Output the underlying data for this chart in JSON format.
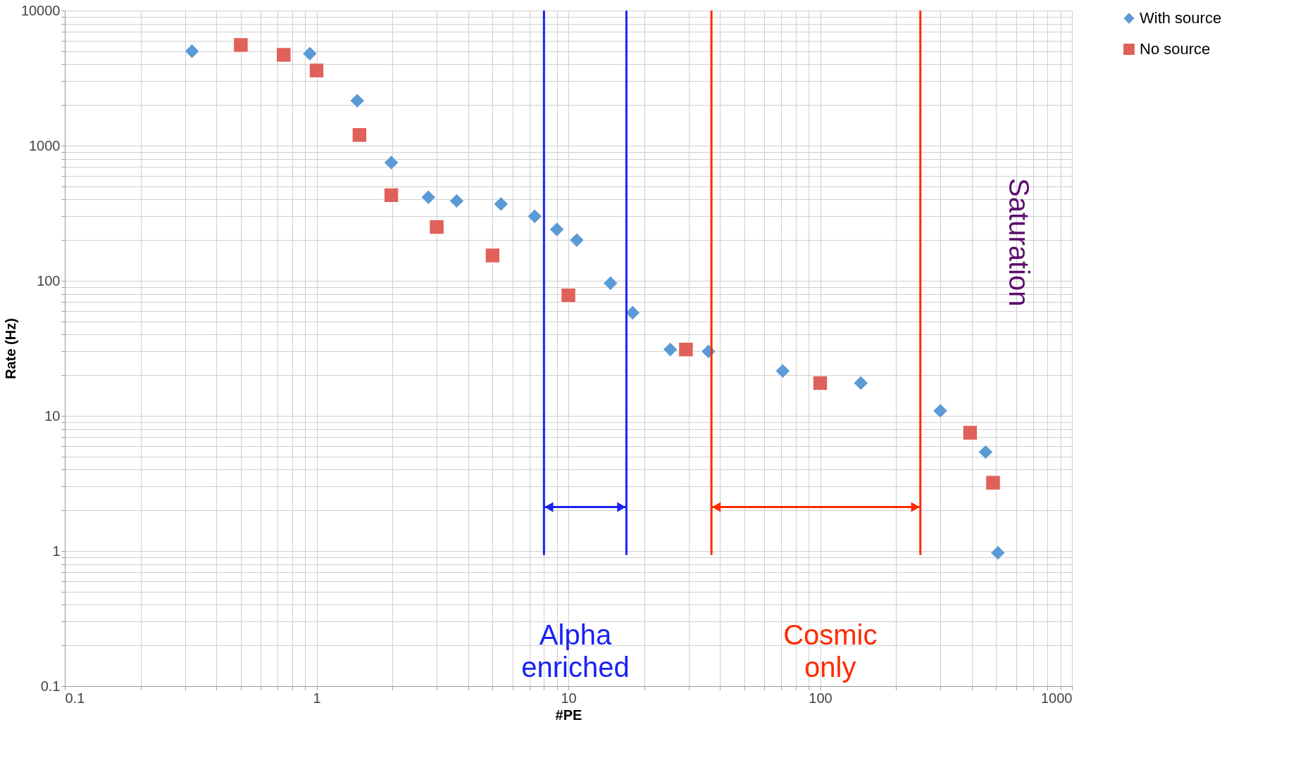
{
  "chart_data": {
    "type": "scatter",
    "xlabel": "#PE",
    "ylabel": "Rate (Hz)",
    "log": "xy",
    "grid": true,
    "legend": "right",
    "xlim": [
      0.1,
      1000
    ],
    "ylim": [
      0.1,
      10000
    ],
    "xticks": [
      0.1,
      {
        "value": 0.2,
        "label": null
      },
      {
        "value": 0.3,
        "label": null
      },
      {
        "value": 0.4,
        "label": null
      },
      {
        "value": 0.5,
        "label": null
      },
      {
        "value": 0.6,
        "label": null
      },
      {
        "value": 0.7,
        "label": null
      },
      {
        "value": 0.8,
        "label": null
      },
      {
        "value": 0.9,
        "label": null
      },
      1,
      {
        "value": 2,
        "label": null
      },
      {
        "value": 3,
        "label": null
      },
      {
        "value": 4,
        "label": null
      },
      {
        "value": 5,
        "label": null
      },
      {
        "value": 6,
        "label": null
      },
      {
        "value": 7,
        "label": null
      },
      {
        "value": 8,
        "label": null
      },
      {
        "value": 9,
        "label": null
      },
      10,
      {
        "value": 20,
        "label": null
      },
      {
        "value": 30,
        "label": null
      },
      {
        "value": 40,
        "label": null
      },
      {
        "value": 50,
        "label": null
      },
      {
        "value": 60,
        "label": null
      },
      {
        "value": 70,
        "label": null
      },
      {
        "value": 80,
        "label": null
      },
      {
        "value": 90,
        "label": null
      },
      100,
      {
        "value": 200,
        "label": null
      },
      {
        "value": 300,
        "label": null
      },
      {
        "value": 400,
        "label": null
      },
      {
        "value": 500,
        "label": null
      },
      {
        "value": 600,
        "label": null
      },
      {
        "value": 700,
        "label": null
      },
      {
        "value": 800,
        "label": null
      },
      {
        "value": 900,
        "label": null
      },
      1000
    ],
    "yticks": [
      0.1,
      {
        "value": 0.2,
        "label": null
      },
      {
        "value": 0.3,
        "label": null
      },
      {
        "value": 0.4,
        "label": null
      },
      {
        "value": 0.5,
        "label": null
      },
      {
        "value": 0.6,
        "label": null
      },
      {
        "value": 0.7,
        "label": null
      },
      {
        "value": 0.8,
        "label": null
      },
      {
        "value": 0.9,
        "label": null
      },
      1,
      {
        "value": 2,
        "label": null
      },
      {
        "value": 3,
        "label": null
      },
      {
        "value": 4,
        "label": null
      },
      {
        "value": 5,
        "label": null
      },
      {
        "value": 6,
        "label": null
      },
      {
        "value": 7,
        "label": null
      },
      {
        "value": 8,
        "label": null
      },
      {
        "value": 9,
        "label": null
      },
      10,
      {
        "value": 20,
        "label": null
      },
      {
        "value": 30,
        "label": null
      },
      {
        "value": 40,
        "label": null
      },
      {
        "value": 50,
        "label": null
      },
      {
        "value": 60,
        "label": null
      },
      {
        "value": 70,
        "label": null
      },
      {
        "value": 80,
        "label": null
      },
      {
        "value": 90,
        "label": null
      },
      100,
      {
        "value": 200,
        "label": null
      },
      {
        "value": 300,
        "label": null
      },
      {
        "value": 400,
        "label": null
      },
      {
        "value": 500,
        "label": null
      },
      {
        "value": 600,
        "label": null
      },
      {
        "value": 700,
        "label": null
      },
      {
        "value": 800,
        "label": null
      },
      {
        "value": 900,
        "label": null
      },
      1000,
      {
        "value": 2000,
        "label": null
      },
      {
        "value": 3000,
        "label": null
      },
      {
        "value": 4000,
        "label": null
      },
      {
        "value": 5000,
        "label": null
      },
      {
        "value": 6000,
        "label": null
      },
      {
        "value": 7000,
        "label": null
      },
      {
        "value": 8000,
        "label": null
      },
      {
        "value": 9000,
        "label": null
      },
      10000
    ],
    "series": [
      {
        "name": "With source",
        "color": "#5b9bd5",
        "marker": "diamond",
        "x": [
          0.32,
          0.94,
          1.45,
          1.98,
          2.78,
          3.6,
          5.4,
          7.35,
          9.0,
          10.8,
          14.7,
          18,
          25.4,
          36,
          71,
          145,
          300,
          454,
          508
        ],
        "values": [
          5000,
          4800,
          2150,
          750,
          415,
          390,
          370,
          300,
          240,
          200,
          96,
          58,
          31,
          30,
          21.5,
          17.5,
          10.9,
          5.4,
          0.97
        ]
      },
      {
        "name": "No source",
        "color": "#e0605a",
        "marker": "square",
        "x": [
          0.5,
          0.74,
          1.0,
          1.48,
          1.98,
          3.0,
          5.0,
          10,
          29.3,
          100,
          394,
          486
        ],
        "values": [
          5560,
          4700,
          3600,
          1200,
          430,
          250,
          154,
          78,
          31,
          17.5,
          7.5,
          3.2
        ]
      }
    ],
    "ref_lines": [
      {
        "axis": "x",
        "value": 8,
        "color": "#1a22f5"
      },
      {
        "axis": "x",
        "value": 17,
        "color": "#1a22f5"
      },
      {
        "axis": "x",
        "value": 37,
        "color": "#ff2a00"
      },
      {
        "axis": "x",
        "value": 250,
        "color": "#ff2a00"
      }
    ],
    "annotations": [
      "Alpha enriched",
      "Cosmic only",
      "Saturation"
    ]
  }
}
